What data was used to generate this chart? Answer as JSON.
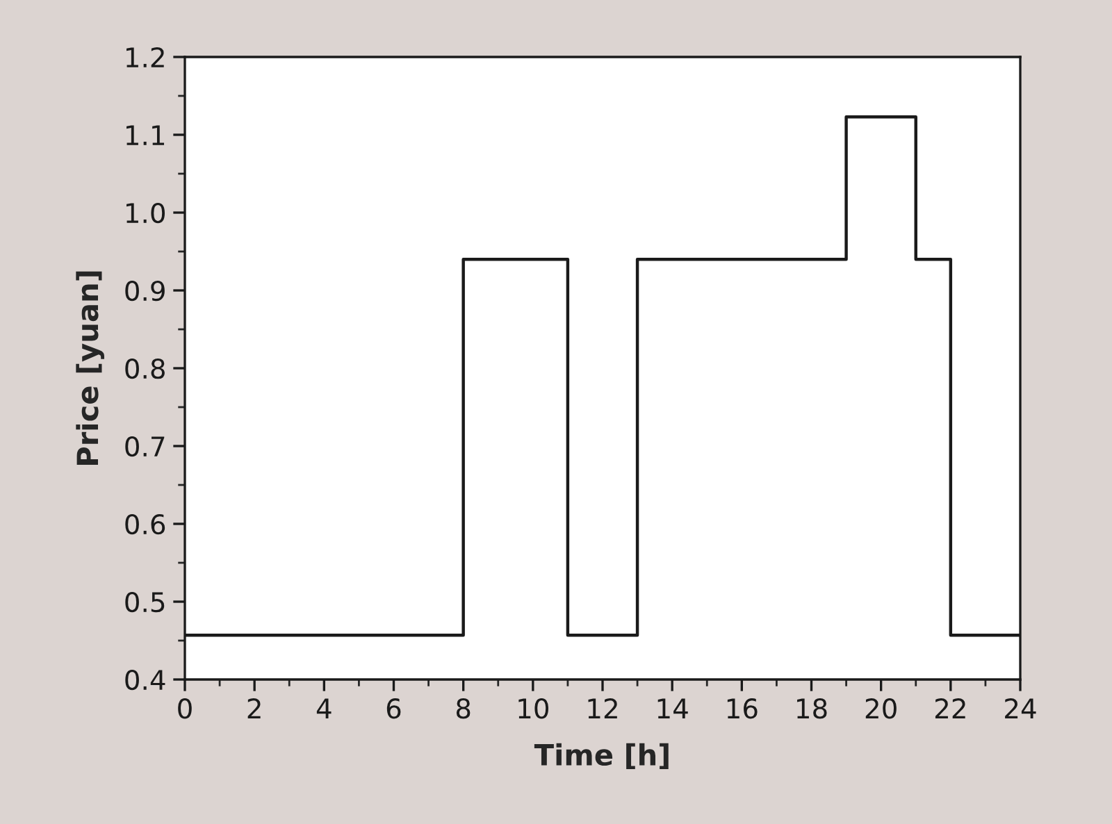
{
  "chart_data": {
    "type": "step",
    "xlabel": "Time [h]",
    "ylabel": "Price [yuan]",
    "x": [
      0,
      8,
      11,
      13,
      19,
      21,
      22,
      24
    ],
    "series": [
      {
        "color": "#1a1a1a",
        "values": [
          0.457,
          0.94,
          0.457,
          0.94,
          1.123,
          0.94,
          0.457,
          0.457
        ]
      }
    ],
    "xlim": [
      0,
      24
    ],
    "xticks": [
      0,
      2,
      4,
      6,
      8,
      10,
      12,
      14,
      16,
      18,
      20,
      22,
      24
    ],
    "ylim": [
      0.4,
      1.2
    ],
    "yticks": [
      {
        "value": 0.4,
        "label": "0.4"
      },
      {
        "value": 0.5,
        "label": "0.5"
      },
      {
        "value": 0.6,
        "label": "0.6"
      },
      {
        "value": 0.7,
        "label": "0.7"
      },
      {
        "value": 0.8,
        "label": "0.8"
      },
      {
        "value": 0.9,
        "label": "0.9"
      },
      {
        "value": 1.0,
        "label": "1.0"
      },
      {
        "value": 1.1,
        "label": "1.1"
      },
      {
        "value": 1.2,
        "label": "1.2"
      }
    ],
    "grid": false,
    "marker": "none",
    "line_style": "solid"
  }
}
